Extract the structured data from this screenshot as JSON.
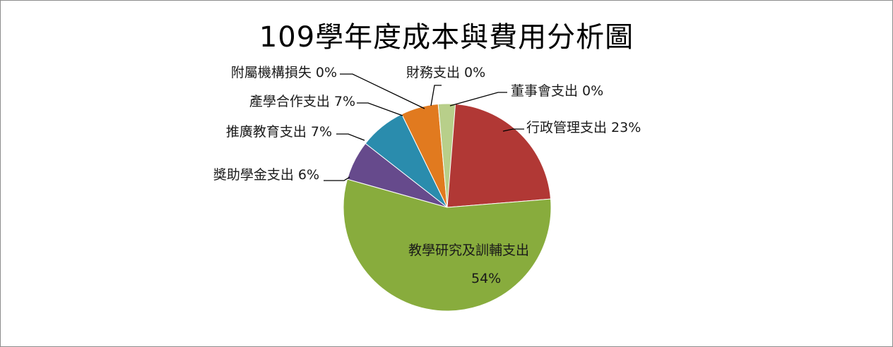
{
  "chart_data": {
    "type": "pie",
    "title": "109學年度成本與費用分析圖",
    "slices": [
      {
        "name": "行政管理支出",
        "value": 23,
        "label": "行政管理支出 23%",
        "color": "#b13835"
      },
      {
        "name": "教學研究及訓輔支出",
        "value": 54,
        "label_line1": "教學研究及訓輔支出",
        "label_line2": "54%",
        "color": "#88ac3d"
      },
      {
        "name": "獎助學金支出",
        "value": 6,
        "label": "獎助學金支出 6%",
        "color": "#664a8c"
      },
      {
        "name": "推廣教育支出",
        "value": 7,
        "label": "推廣教育支出 7%",
        "color": "#2a8cad"
      },
      {
        "name": "產學合作支出",
        "value": 7,
        "label": "產學合作支出 7%",
        "color": "#e17a1f"
      },
      {
        "name": "附屬機構損失",
        "value": 0,
        "label": "附屬機構損失 0%",
        "color": "#a3b8d7"
      },
      {
        "name": "財務支出",
        "value": 0,
        "label": "財務支出 0%",
        "color": "#b8cf8a"
      },
      {
        "name": "董事會支出",
        "value": 0,
        "label": "董事會支出 0%",
        "color": "#9c83ba"
      }
    ]
  }
}
